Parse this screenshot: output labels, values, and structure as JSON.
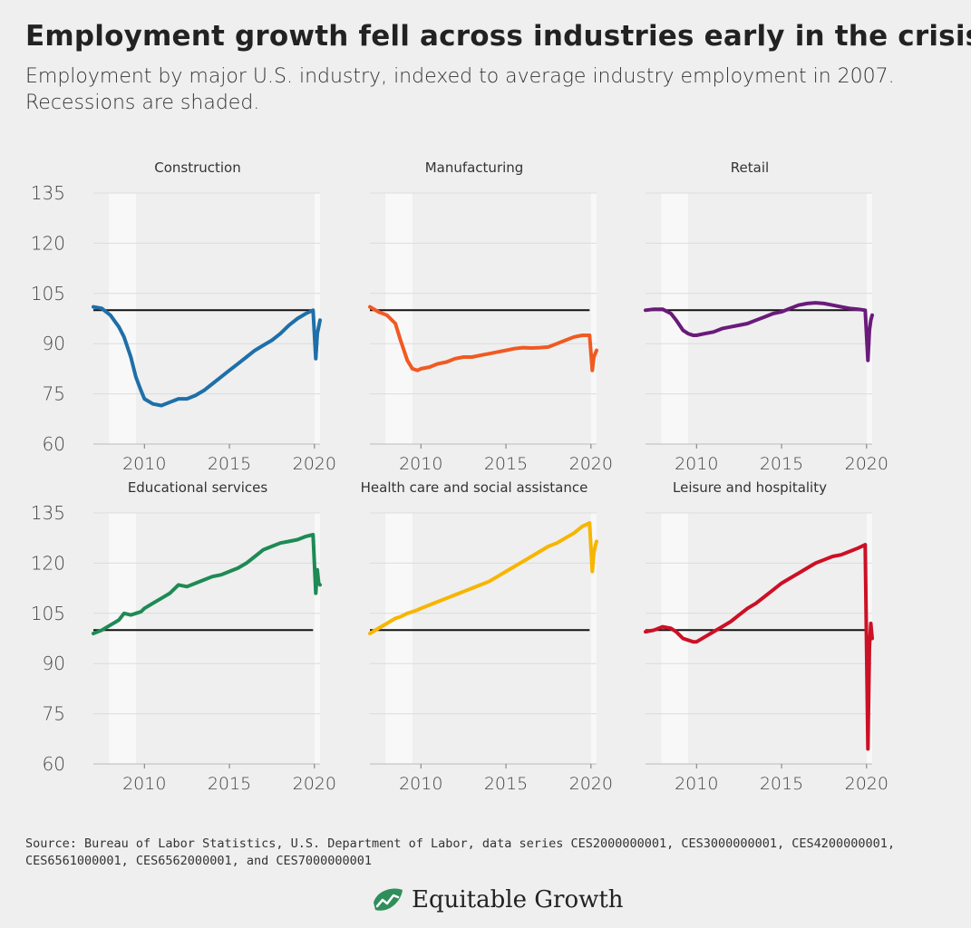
{
  "title": "Employment growth fell across industries early in the crisis",
  "subtitle": "Employment by major U.S. industry, indexed to average industry employment in 2007. Recessions are shaded.",
  "source": "Source: Bureau of Labor Statistics, U.S. Department of Labor, data series CES2000000001, CES3000000001, CES4200000001, CES6561000001, CES6562000001, and CES7000000001",
  "brand": {
    "name": "Equitable Growth",
    "logo_icon": "growth-leaf-icon",
    "logo_color": "#2f8f5b"
  },
  "chart_data": [
    {
      "type": "line",
      "panel": "Construction",
      "color": "#1f6fa8",
      "xlim": [
        2007,
        2020.33
      ],
      "ylim": [
        60,
        135
      ],
      "yticks": [
        60,
        75,
        90,
        105,
        120,
        135
      ],
      "xticks": [
        2010,
        2015,
        2020
      ],
      "reference_line": 100,
      "recessions": [
        [
          2007.92,
          2009.5
        ],
        [
          2020.0,
          2020.33
        ]
      ],
      "x": [
        2007.0,
        2007.5,
        2008.0,
        2008.5,
        2008.8,
        2009.2,
        2009.5,
        2009.8,
        2010.0,
        2010.5,
        2011.0,
        2011.5,
        2012.0,
        2012.5,
        2013.0,
        2013.5,
        2014.0,
        2014.5,
        2015.0,
        2015.5,
        2016.0,
        2016.5,
        2017.0,
        2017.5,
        2018.0,
        2018.5,
        2019.0,
        2019.5,
        2019.92,
        2020.08,
        2020.17,
        2020.25,
        2020.33
      ],
      "y": [
        101,
        100.5,
        98.5,
        95,
        92,
        86,
        80,
        76,
        73.5,
        72,
        71.5,
        72.5,
        73.5,
        73.5,
        74.5,
        76,
        78,
        80,
        82,
        84,
        86,
        88,
        89.5,
        91,
        93,
        95.5,
        97.5,
        99,
        100,
        85.5,
        93,
        95,
        97
      ]
    },
    {
      "type": "line",
      "panel": "Manufacturing",
      "color": "#f05a22",
      "xlim": [
        2007,
        2020.33
      ],
      "ylim": [
        60,
        135
      ],
      "yticks": [
        60,
        75,
        90,
        105,
        120,
        135
      ],
      "xticks": [
        2010,
        2015,
        2020
      ],
      "reference_line": 100,
      "recessions": [
        [
          2007.92,
          2009.5
        ],
        [
          2020.0,
          2020.33
        ]
      ],
      "x": [
        2007.0,
        2007.5,
        2008.0,
        2008.5,
        2008.8,
        2009.2,
        2009.5,
        2009.8,
        2010.0,
        2010.5,
        2011.0,
        2011.5,
        2012.0,
        2012.5,
        2013.0,
        2013.5,
        2014.0,
        2014.5,
        2015.0,
        2015.5,
        2016.0,
        2016.5,
        2017.0,
        2017.5,
        2018.0,
        2018.5,
        2019.0,
        2019.5,
        2019.92,
        2020.08,
        2020.17,
        2020.25,
        2020.33
      ],
      "y": [
        101,
        99.5,
        98.5,
        96,
        91,
        85,
        82.5,
        82,
        82.5,
        83,
        84,
        84.5,
        85.5,
        86,
        86,
        86.5,
        87,
        87.5,
        88,
        88.5,
        88.8,
        88.7,
        88.8,
        89,
        90,
        91,
        92,
        92.5,
        92.5,
        82,
        86,
        87,
        88
      ]
    },
    {
      "type": "line",
      "panel": "Retail",
      "color": "#6a1b7a",
      "xlim": [
        2007,
        2020.33
      ],
      "ylim": [
        60,
        135
      ],
      "yticks": [
        60,
        75,
        90,
        105,
        120,
        135
      ],
      "xticks": [
        2010,
        2015,
        2020
      ],
      "reference_line": 100,
      "recessions": [
        [
          2007.92,
          2009.5
        ],
        [
          2020.0,
          2020.33
        ]
      ],
      "x": [
        2007.0,
        2007.5,
        2008.0,
        2008.5,
        2008.8,
        2009.2,
        2009.5,
        2009.8,
        2010.0,
        2010.5,
        2011.0,
        2011.5,
        2012.0,
        2012.5,
        2013.0,
        2013.5,
        2014.0,
        2014.5,
        2015.0,
        2015.5,
        2016.0,
        2016.5,
        2017.0,
        2017.5,
        2018.0,
        2018.5,
        2019.0,
        2019.5,
        2019.92,
        2020.08,
        2020.17,
        2020.25,
        2020.33
      ],
      "y": [
        100,
        100.3,
        100.3,
        99,
        97,
        94,
        93,
        92.5,
        92.5,
        93,
        93.5,
        94.5,
        95,
        95.5,
        96,
        97,
        98,
        99,
        99.5,
        100.5,
        101.5,
        102,
        102.2,
        102,
        101.5,
        101,
        100.5,
        100.3,
        100,
        85,
        94,
        97,
        98.5
      ]
    },
    {
      "type": "line",
      "panel": "Educational services",
      "color": "#1e8a55",
      "xlim": [
        2007,
        2020.33
      ],
      "ylim": [
        60,
        135
      ],
      "yticks": [
        60,
        75,
        90,
        105,
        120,
        135
      ],
      "xticks": [
        2010,
        2015,
        2020
      ],
      "reference_line": 100,
      "recessions": [
        [
          2007.92,
          2009.5
        ],
        [
          2020.0,
          2020.33
        ]
      ],
      "x": [
        2007.0,
        2007.5,
        2008.0,
        2008.5,
        2008.8,
        2009.2,
        2009.5,
        2009.8,
        2010.0,
        2010.5,
        2011.0,
        2011.5,
        2012.0,
        2012.5,
        2013.0,
        2013.5,
        2014.0,
        2014.5,
        2015.0,
        2015.5,
        2016.0,
        2016.5,
        2017.0,
        2017.5,
        2018.0,
        2018.5,
        2019.0,
        2019.5,
        2019.92,
        2020.08,
        2020.17,
        2020.25,
        2020.33
      ],
      "y": [
        99,
        100,
        101.5,
        103,
        105,
        104.5,
        105,
        105.5,
        106.5,
        108,
        109.5,
        111,
        113.5,
        113,
        114,
        115,
        116,
        116.5,
        117.5,
        118.5,
        120,
        122,
        124,
        125,
        126,
        126.5,
        127,
        128,
        128.5,
        111,
        118,
        114,
        113.5
      ]
    },
    {
      "type": "line",
      "panel": "Health care and social assistance",
      "color": "#f7b500",
      "xlim": [
        2007,
        2020.33
      ],
      "ylim": [
        60,
        135
      ],
      "yticks": [
        60,
        75,
        90,
        105,
        120,
        135
      ],
      "xticks": [
        2010,
        2015,
        2020
      ],
      "reference_line": 100,
      "recessions": [
        [
          2007.92,
          2009.5
        ],
        [
          2020.0,
          2020.33
        ]
      ],
      "x": [
        2007.0,
        2007.5,
        2008.0,
        2008.5,
        2008.8,
        2009.2,
        2009.5,
        2009.8,
        2010.0,
        2010.5,
        2011.0,
        2011.5,
        2012.0,
        2012.5,
        2013.0,
        2013.5,
        2014.0,
        2014.5,
        2015.0,
        2015.5,
        2016.0,
        2016.5,
        2017.0,
        2017.5,
        2018.0,
        2018.5,
        2019.0,
        2019.5,
        2019.92,
        2020.08,
        2020.17,
        2020.25,
        2020.33
      ],
      "y": [
        99,
        100.5,
        102,
        103.5,
        104,
        105,
        105.5,
        106,
        106.5,
        107.5,
        108.5,
        109.5,
        110.5,
        111.5,
        112.5,
        113.5,
        114.5,
        116,
        117.5,
        119,
        120.5,
        122,
        123.5,
        125,
        126,
        127.5,
        129,
        131,
        132,
        117.5,
        123,
        125,
        126.5
      ]
    },
    {
      "type": "line",
      "panel": "Leisure and hospitality",
      "color": "#cc1025",
      "xlim": [
        2007,
        2020.33
      ],
      "ylim": [
        60,
        135
      ],
      "yticks": [
        60,
        75,
        90,
        105,
        120,
        135
      ],
      "xticks": [
        2010,
        2015,
        2020
      ],
      "reference_line": 100,
      "recessions": [
        [
          2007.92,
          2009.5
        ],
        [
          2020.0,
          2020.33
        ]
      ],
      "x": [
        2007.0,
        2007.5,
        2008.0,
        2008.5,
        2008.8,
        2009.2,
        2009.5,
        2009.8,
        2010.0,
        2010.5,
        2011.0,
        2011.5,
        2012.0,
        2012.5,
        2013.0,
        2013.5,
        2014.0,
        2014.5,
        2015.0,
        2015.5,
        2016.0,
        2016.5,
        2017.0,
        2017.5,
        2018.0,
        2018.5,
        2019.0,
        2019.5,
        2019.92,
        2020.08,
        2020.17,
        2020.25,
        2020.33
      ],
      "y": [
        99.5,
        100,
        101,
        100.5,
        99.5,
        97.5,
        97,
        96.5,
        96.5,
        98,
        99.5,
        101,
        102.5,
        104.5,
        106.5,
        108,
        110,
        112,
        114,
        115.5,
        117,
        118.5,
        120,
        121,
        122,
        122.5,
        123.5,
        124.5,
        125.5,
        64.5,
        95,
        102,
        97.5
      ]
    }
  ]
}
